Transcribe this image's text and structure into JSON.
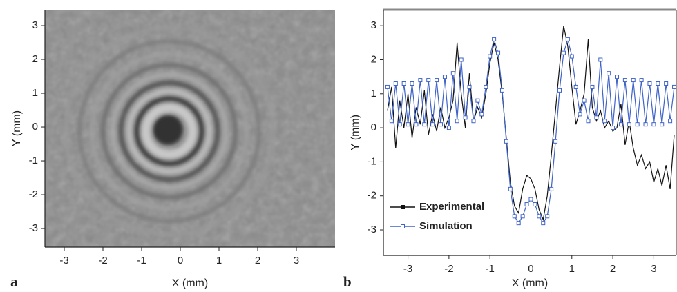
{
  "chart_data": [
    {
      "type": "image",
      "panel_label": "a",
      "xlabel": "X (mm)",
      "ylabel": "Y (mm)",
      "xlim": [
        -3.5,
        4.0
      ],
      "ylim": [
        -3.55,
        3.47
      ],
      "xticks": [
        -3,
        -2,
        -1,
        0,
        1,
        2,
        3
      ],
      "yticks": [
        -3,
        -2,
        -1,
        0,
        1,
        2,
        3
      ]
    },
    {
      "type": "line",
      "panel_label": "b",
      "xlabel": "X (mm)",
      "ylabel": "Y (mm)",
      "xlim": [
        -3.6,
        3.55
      ],
      "ylim": [
        -3.75,
        3.47
      ],
      "xticks": [
        -3,
        -2,
        -1,
        0,
        1,
        2,
        3
      ],
      "yticks": [
        -3,
        -2,
        -1,
        0,
        1,
        2,
        3
      ],
      "legend": "lower left",
      "x": [
        -3.5,
        -3.4,
        -3.3,
        -3.2,
        -3.1,
        -3.0,
        -2.9,
        -2.8,
        -2.7,
        -2.6,
        -2.5,
        -2.4,
        -2.3,
        -2.2,
        -2.1,
        -2.0,
        -1.9,
        -1.8,
        -1.7,
        -1.6,
        -1.5,
        -1.4,
        -1.3,
        -1.2,
        -1.1,
        -1.0,
        -0.9,
        -0.8,
        -0.7,
        -0.6,
        -0.5,
        -0.4,
        -0.3,
        -0.2,
        -0.1,
        0,
        0.1,
        0.2,
        0.3,
        0.4,
        0.5,
        0.6,
        0.7,
        0.8,
        0.9,
        1.0,
        1.1,
        1.2,
        1.3,
        1.4,
        1.5,
        1.6,
        1.7,
        1.8,
        1.9,
        2.0,
        2.1,
        2.2,
        2.3,
        2.4,
        2.5,
        2.6,
        2.7,
        2.8,
        2.9,
        3.0,
        3.1,
        3.2,
        3.3,
        3.4,
        3.5
      ],
      "series": [
        {
          "name": "Experimental",
          "color": "#111111",
          "marker": "none",
          "values": [
            0.5,
            1.2,
            -0.6,
            0.8,
            0.0,
            1.0,
            -0.3,
            0.6,
            0.1,
            1.1,
            -0.2,
            0.4,
            -0.1,
            0.6,
            0.0,
            0.3,
            0.8,
            2.5,
            1.0,
            0.0,
            1.6,
            0.2,
            0.6,
            0.3,
            1.0,
            1.9,
            2.5,
            2.0,
            1.0,
            -0.3,
            -1.6,
            -2.3,
            -2.5,
            -1.8,
            -1.4,
            -1.5,
            -1.8,
            -2.4,
            -2.7,
            -2.0,
            -0.8,
            0.5,
            1.8,
            3.0,
            2.4,
            1.2,
            0.1,
            0.5,
            1.0,
            2.6,
            0.6,
            0.2,
            0.5,
            0.0,
            0.2,
            -0.1,
            0.0,
            0.7,
            -0.5,
            0.2,
            -0.6,
            -1.1,
            -0.8,
            -1.2,
            -1.0,
            -1.6,
            -1.2,
            -1.7,
            -1.1,
            -1.8,
            -0.2
          ]
        },
        {
          "name": "Simulation",
          "color": "#3f63c8",
          "marker": "square",
          "values": [
            1.2,
            0.2,
            1.3,
            0.1,
            1.3,
            0.1,
            1.3,
            0.1,
            1.4,
            0.1,
            1.4,
            0.1,
            1.4,
            0.1,
            1.5,
            0.0,
            1.6,
            0.2,
            2.0,
            0.3,
            1.2,
            0.2,
            0.8,
            0.4,
            1.2,
            2.1,
            2.6,
            2.2,
            1.1,
            -0.4,
            -1.8,
            -2.6,
            -2.8,
            -2.6,
            -2.25,
            -2.1,
            -2.25,
            -2.6,
            -2.8,
            -2.6,
            -1.8,
            -0.4,
            1.1,
            2.2,
            2.6,
            2.1,
            1.2,
            0.4,
            0.8,
            0.2,
            1.2,
            0.3,
            2.0,
            0.2,
            1.6,
            0.0,
            1.5,
            0.1,
            1.4,
            0.1,
            1.4,
            0.1,
            1.4,
            0.1,
            1.3,
            0.1,
            1.3,
            0.1,
            1.3,
            0.2,
            1.2
          ]
        }
      ]
    }
  ]
}
